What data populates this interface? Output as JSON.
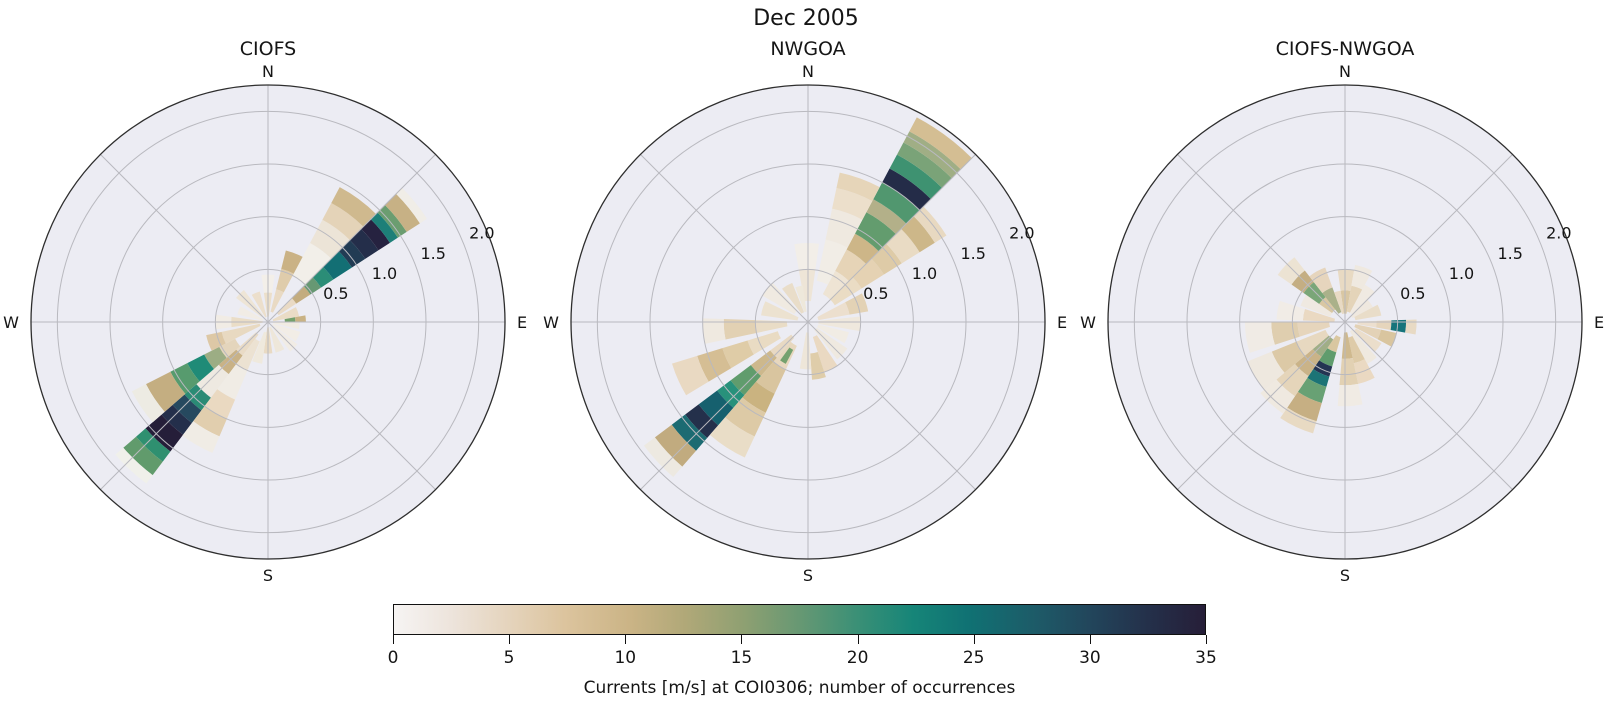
{
  "figure": {
    "suptitle": "Dec 2005"
  },
  "style": {
    "background": "#ffffff",
    "polar_background": "#ececf3",
    "grid_color": "#b9b9bf",
    "spine_color": "#2e2e2e",
    "text_color": "#151515"
  },
  "chart_data": [
    {
      "type": "polar_stacked_bar",
      "title": "CIOFS",
      "direction_labels": [
        "N",
        "E",
        "S",
        "W"
      ],
      "r_ticks": [
        0.5,
        1.0,
        1.5,
        2.0
      ],
      "r_max": 2.25,
      "grid_spoke_step_deg": 45,
      "cell_format": "[dir_from_deg_compass, dir_to_deg_compass, speed_from, speed_to, color_encoding_occurrences]",
      "cells": [
        [
          45,
          57,
          0.12,
          0.32,
          "#e9dac5"
        ],
        [
          45,
          57,
          0.32,
          0.48,
          "#c3ac7f"
        ],
        [
          45,
          57,
          0.48,
          0.6,
          "#679873"
        ],
        [
          45,
          57,
          0.6,
          0.74,
          "#2b8d77"
        ],
        [
          45,
          57,
          0.74,
          0.95,
          "#136f74"
        ],
        [
          45,
          57,
          0.95,
          1.1,
          "#223c54"
        ],
        [
          45,
          57,
          1.1,
          1.25,
          "#242e4a"
        ],
        [
          45,
          57,
          1.25,
          1.38,
          "#262240"
        ],
        [
          45,
          57,
          1.38,
          1.47,
          "#1d7f78"
        ],
        [
          45,
          57,
          1.47,
          1.57,
          "#6b9d70"
        ],
        [
          45,
          57,
          1.57,
          1.72,
          "#c7b185"
        ],
        [
          45,
          57,
          1.72,
          1.8,
          "#f0ede7"
        ],
        [
          28,
          45,
          0.5,
          0.85,
          "#f2efe9"
        ],
        [
          28,
          45,
          0.85,
          1.1,
          "#ece4d7"
        ],
        [
          28,
          45,
          1.1,
          1.28,
          "#e4d3b8"
        ],
        [
          28,
          45,
          1.28,
          1.45,
          "#cfb98e"
        ],
        [
          14,
          28,
          0.1,
          0.32,
          "#e9dac4"
        ],
        [
          14,
          28,
          0.32,
          0.52,
          "#dfccab"
        ],
        [
          14,
          28,
          0.52,
          0.7,
          "#cab285"
        ],
        [
          217,
          229,
          0.15,
          0.4,
          "#e9dbc6"
        ],
        [
          217,
          229,
          0.4,
          0.62,
          "#c9b286"
        ],
        [
          217,
          229,
          0.62,
          0.9,
          "#eee9e1"
        ],
        [
          217,
          229,
          0.9,
          1.05,
          "#2a8b75"
        ],
        [
          217,
          229,
          1.05,
          1.2,
          "#26495f"
        ],
        [
          217,
          229,
          1.2,
          1.34,
          "#242f4b"
        ],
        [
          217,
          229,
          1.34,
          1.54,
          "#251e39"
        ],
        [
          217,
          229,
          1.54,
          1.66,
          "#2f9070"
        ],
        [
          217,
          229,
          1.66,
          1.82,
          "#619b6c"
        ],
        [
          217,
          229,
          1.82,
          1.92,
          "#f0f0ea"
        ],
        [
          229,
          243,
          0.35,
          0.52,
          "#e4d5bc"
        ],
        [
          229,
          243,
          0.52,
          0.68,
          "#9cad84"
        ],
        [
          229,
          243,
          0.68,
          0.86,
          "#1f8b77"
        ],
        [
          229,
          243,
          0.86,
          1.04,
          "#579b6e"
        ],
        [
          229,
          243,
          1.04,
          1.3,
          "#c4ae81"
        ],
        [
          229,
          243,
          1.3,
          1.45,
          "#edebe3"
        ],
        [
          203,
          217,
          0.2,
          0.5,
          "#ece2d2"
        ],
        [
          203,
          217,
          0.5,
          0.8,
          "#f0ece5"
        ],
        [
          203,
          217,
          0.8,
          1.0,
          "#ead9c1"
        ],
        [
          203,
          217,
          1.0,
          1.18,
          "#e1ceae"
        ],
        [
          203,
          217,
          1.18,
          1.35,
          "#f0ece5"
        ],
        [
          352,
          368,
          0.05,
          0.28,
          "#ecdfca"
        ],
        [
          352,
          368,
          0.28,
          0.45,
          "#f3efe9"
        ],
        [
          62,
          80,
          0.05,
          0.3,
          "#eadcc6"
        ],
        [
          80,
          90,
          0.16,
          0.26,
          "#74a06c"
        ],
        [
          80,
          90,
          0.26,
          0.36,
          "#c9b284"
        ],
        [
          90,
          103,
          0.05,
          0.3,
          "#f1ece3"
        ],
        [
          107,
          125,
          0.05,
          0.32,
          "#f2ede6"
        ],
        [
          127,
          143,
          0.08,
          0.35,
          "#f1ece5"
        ],
        [
          149,
          166,
          0.05,
          0.3,
          "#eee7da"
        ],
        [
          172,
          188,
          0.05,
          0.3,
          "#e9dac3"
        ],
        [
          188,
          202,
          0.1,
          0.4,
          "#efe9dd"
        ],
        [
          243,
          258,
          0.08,
          0.45,
          "#e8d9c1"
        ],
        [
          243,
          258,
          0.45,
          0.6,
          "#ddc8a6"
        ],
        [
          262,
          278,
          0.05,
          0.35,
          "#eaddc7"
        ],
        [
          262,
          278,
          0.35,
          0.5,
          "#f1ece5"
        ],
        [
          284,
          300,
          0.05,
          0.3,
          "#f1ece5"
        ],
        [
          307,
          323,
          0.08,
          0.38,
          "#eee5d6"
        ],
        [
          329,
          345,
          0.05,
          0.3,
          "#ecdfcc"
        ]
      ]
    },
    {
      "type": "polar_stacked_bar",
      "title": "NWGOA",
      "direction_labels": [
        "N",
        "E",
        "S",
        "W"
      ],
      "r_ticks": [
        0.5,
        1.0,
        1.5,
        2.0
      ],
      "r_max": 2.25,
      "grid_spoke_step_deg": 45,
      "cell_format": "[dir_from_deg_compass, dir_to_deg_compass, speed_from, speed_to, color_encoding_occurrences]",
      "cells": [
        [
          28,
          45,
          0.3,
          0.55,
          "#eee4d4"
        ],
        [
          28,
          45,
          0.55,
          0.78,
          "#e6d4b7"
        ],
        [
          28,
          45,
          0.78,
          0.95,
          "#cdb688"
        ],
        [
          28,
          45,
          0.95,
          1.18,
          "#639c6e"
        ],
        [
          28,
          45,
          1.18,
          1.32,
          "#b3b089"
        ],
        [
          28,
          45,
          1.32,
          1.5,
          "#51976f"
        ],
        [
          28,
          45,
          1.5,
          1.65,
          "#242c48"
        ],
        [
          28,
          45,
          1.65,
          1.8,
          "#3e9271"
        ],
        [
          28,
          45,
          1.8,
          1.93,
          "#7aa378"
        ],
        [
          28,
          45,
          1.93,
          2.05,
          "#a0ae85"
        ],
        [
          28,
          45,
          2.05,
          2.2,
          "#d4be93"
        ],
        [
          12,
          28,
          0.4,
          0.8,
          "#f1ede6"
        ],
        [
          12,
          28,
          0.8,
          1.1,
          "#efe9e0"
        ],
        [
          12,
          28,
          1.1,
          1.3,
          "#ecdfcb"
        ],
        [
          12,
          28,
          1.3,
          1.45,
          "#e6d5b9"
        ],
        [
          45,
          58,
          0.3,
          0.6,
          "#eadcc4"
        ],
        [
          45,
          58,
          0.6,
          0.85,
          "#e5d2b3"
        ],
        [
          45,
          58,
          0.85,
          1.05,
          "#decba7"
        ],
        [
          45,
          58,
          1.05,
          1.25,
          "#e9dbc4"
        ],
        [
          45,
          58,
          1.25,
          1.42,
          "#cdb789"
        ],
        [
          45,
          58,
          1.42,
          1.55,
          "#e8d9c1"
        ],
        [
          350,
          368,
          0.2,
          0.5,
          "#eee5d7"
        ],
        [
          350,
          368,
          0.5,
          0.75,
          "#f2eee8"
        ],
        [
          62,
          80,
          0.1,
          0.4,
          "#ecdfce"
        ],
        [
          62,
          80,
          0.4,
          0.58,
          "#e3d2b5"
        ],
        [
          84,
          100,
          0.1,
          0.5,
          "#efe8dd"
        ],
        [
          104,
          120,
          0.1,
          0.4,
          "#f1ece4"
        ],
        [
          124,
          142,
          0.1,
          0.45,
          "#efe9e0"
        ],
        [
          146,
          162,
          0.15,
          0.5,
          "#ead9c2"
        ],
        [
          162,
          176,
          0.3,
          0.55,
          "#dfcdaa"
        ],
        [
          176,
          190,
          0.1,
          0.45,
          "#eee6d9"
        ],
        [
          221,
          233,
          0.2,
          0.45,
          "#e8d9c3"
        ],
        [
          221,
          233,
          0.45,
          0.68,
          "#cdb88c"
        ],
        [
          221,
          233,
          0.68,
          0.92,
          "#609c6d"
        ],
        [
          221,
          233,
          0.92,
          1.08,
          "#28917b"
        ],
        [
          221,
          233,
          1.08,
          1.3,
          "#16606e"
        ],
        [
          221,
          233,
          1.3,
          1.46,
          "#24304b"
        ],
        [
          221,
          233,
          1.46,
          1.62,
          "#1c6b72"
        ],
        [
          221,
          233,
          1.62,
          1.82,
          "#c1ab7f"
        ],
        [
          221,
          233,
          1.82,
          1.95,
          "#ede9e1"
        ],
        [
          205,
          221,
          0.25,
          0.5,
          "#e7d7be"
        ],
        [
          205,
          221,
          0.5,
          0.75,
          "#d9c59f"
        ],
        [
          205,
          221,
          0.75,
          0.95,
          "#cab380"
        ],
        [
          205,
          221,
          0.95,
          1.2,
          "#ddcaa6"
        ],
        [
          205,
          221,
          1.2,
          1.42,
          "#e9ddc7"
        ],
        [
          208,
          216,
          0.3,
          0.45,
          "#75a16e"
        ],
        [
          239,
          253,
          0.3,
          0.6,
          "#e9dbc3"
        ],
        [
          239,
          253,
          0.6,
          0.85,
          "#dfcca7"
        ],
        [
          239,
          253,
          0.85,
          1.1,
          "#d5be94"
        ],
        [
          239,
          253,
          1.1,
          1.35,
          "#e9d9c2"
        ],
        [
          258,
          272,
          0.2,
          0.5,
          "#e9dcc6"
        ],
        [
          258,
          272,
          0.5,
          0.8,
          "#e2d1b3"
        ],
        [
          258,
          272,
          0.8,
          1.0,
          "#efe9e0"
        ],
        [
          278,
          296,
          0.1,
          0.45,
          "#ece2d0"
        ],
        [
          300,
          318,
          0.15,
          0.5,
          "#f0eae1"
        ],
        [
          322,
          338,
          0.1,
          0.4,
          "#e9ddc9"
        ],
        [
          340,
          352,
          0.1,
          0.35,
          "#eee8db"
        ]
      ]
    },
    {
      "type": "polar_stacked_bar",
      "title": "CIOFS-NWGOA",
      "direction_labels": [
        "N",
        "E",
        "S",
        "W"
      ],
      "r_ticks": [
        0.5,
        1.0,
        1.5,
        2.0
      ],
      "r_max": 2.25,
      "grid_spoke_step_deg": 45,
      "cell_format": "[dir_from_deg_compass, dir_to_deg_compass, speed_from, speed_to, color_encoding_occurrences]",
      "cells": [
        [
          352,
          370,
          0.08,
          0.3,
          "#d9c7a3"
        ],
        [
          352,
          370,
          0.3,
          0.5,
          "#e8dac3"
        ],
        [
          10,
          28,
          0.1,
          0.35,
          "#e4d4b9"
        ],
        [
          10,
          28,
          0.35,
          0.55,
          "#efe9e0"
        ],
        [
          28,
          45,
          0.1,
          0.4,
          "#f0eae2"
        ],
        [
          45,
          62,
          0.08,
          0.3,
          "#efe8df"
        ],
        [
          62,
          80,
          0.1,
          0.35,
          "#e9ddc9"
        ],
        [
          88,
          100,
          0.12,
          0.3,
          "#ecdfcf"
        ],
        [
          88,
          100,
          0.3,
          0.44,
          "#e6d5bc"
        ],
        [
          88,
          100,
          0.44,
          0.58,
          "#16747b"
        ],
        [
          88,
          100,
          0.58,
          0.68,
          "#e8dac4"
        ],
        [
          102,
          118,
          0.1,
          0.35,
          "#e3d2b7"
        ],
        [
          102,
          118,
          0.35,
          0.5,
          "#d9c59f"
        ],
        [
          120,
          136,
          0.12,
          0.4,
          "#ebdecb"
        ],
        [
          138,
          152,
          0.1,
          0.45,
          "#efe9df"
        ],
        [
          152,
          168,
          0.15,
          0.4,
          "#decba8"
        ],
        [
          152,
          168,
          0.4,
          0.6,
          "#ead9c2"
        ],
        [
          168,
          185,
          0.1,
          0.35,
          "#cfb98e"
        ],
        [
          168,
          185,
          0.35,
          0.6,
          "#e2d1b3"
        ],
        [
          168,
          185,
          0.6,
          0.8,
          "#f0ebe4"
        ],
        [
          196,
          214,
          0.15,
          0.3,
          "#d9c7a1"
        ],
        [
          196,
          214,
          0.3,
          0.44,
          "#609c6d"
        ],
        [
          196,
          214,
          0.44,
          0.54,
          "#243452"
        ],
        [
          196,
          214,
          0.54,
          0.64,
          "#1c7476"
        ],
        [
          196,
          214,
          0.64,
          0.8,
          "#68a174"
        ],
        [
          196,
          214,
          0.8,
          0.98,
          "#c6af83"
        ],
        [
          196,
          214,
          0.98,
          1.1,
          "#e8dac3"
        ],
        [
          214,
          230,
          0.2,
          0.4,
          "#a0ae87"
        ],
        [
          214,
          230,
          0.4,
          0.62,
          "#cab388"
        ],
        [
          214,
          230,
          0.62,
          0.85,
          "#e5d5ba"
        ],
        [
          214,
          230,
          0.85,
          1.05,
          "#efe9e0"
        ],
        [
          230,
          248,
          0.2,
          0.5,
          "#e7d8c0"
        ],
        [
          230,
          248,
          0.5,
          0.75,
          "#dcc9a6"
        ],
        [
          230,
          248,
          0.75,
          1.0,
          "#eee8df"
        ],
        [
          252,
          270,
          0.15,
          0.45,
          "#e6d5bc"
        ],
        [
          252,
          270,
          0.45,
          0.7,
          "#dfceaf"
        ],
        [
          252,
          270,
          0.7,
          0.95,
          "#f0ebe5"
        ],
        [
          272,
          288,
          0.1,
          0.4,
          "#ead9c2"
        ],
        [
          272,
          288,
          0.4,
          0.65,
          "#f1ece6"
        ],
        [
          290,
          305,
          0.15,
          0.45,
          "#efe9e1"
        ],
        [
          305,
          322,
          0.15,
          0.3,
          "#d9c7a3"
        ],
        [
          305,
          322,
          0.3,
          0.48,
          "#7aa678"
        ],
        [
          305,
          322,
          0.48,
          0.62,
          "#c4ae83"
        ],
        [
          305,
          322,
          0.62,
          0.78,
          "#ece3d3"
        ],
        [
          322,
          340,
          0.1,
          0.35,
          "#aab18a"
        ],
        [
          322,
          340,
          0.35,
          0.55,
          "#e6d5bd"
        ],
        [
          340,
          352,
          0.08,
          0.3,
          "#e8dac4"
        ]
      ]
    },
    {
      "type": "colorbar",
      "label": "Currents [m/s] at COI0306; number of occurrences",
      "min": 0,
      "max": 35,
      "ticks": [
        0,
        5,
        10,
        15,
        20,
        25,
        30,
        35
      ],
      "colormap_name": "rain-like (white-tan-green-teal-dark navy)",
      "colormap": [
        {
          "p": 0.0,
          "c": "#f6f4f3"
        },
        {
          "p": 0.07,
          "c": "#ede4dc"
        },
        {
          "p": 0.14,
          "c": "#e5d4bd"
        },
        {
          "p": 0.21,
          "c": "#dcc49e"
        },
        {
          "p": 0.29,
          "c": "#cbb486"
        },
        {
          "p": 0.36,
          "c": "#b0a878"
        },
        {
          "p": 0.43,
          "c": "#8fa072"
        },
        {
          "p": 0.5,
          "c": "#679873"
        },
        {
          "p": 0.57,
          "c": "#3b9076"
        },
        {
          "p": 0.64,
          "c": "#168578"
        },
        {
          "p": 0.71,
          "c": "#107173"
        },
        {
          "p": 0.79,
          "c": "#1d5b68"
        },
        {
          "p": 0.86,
          "c": "#22455b"
        },
        {
          "p": 0.93,
          "c": "#24304a"
        },
        {
          "p": 1.0,
          "c": "#261e38"
        }
      ]
    }
  ]
}
